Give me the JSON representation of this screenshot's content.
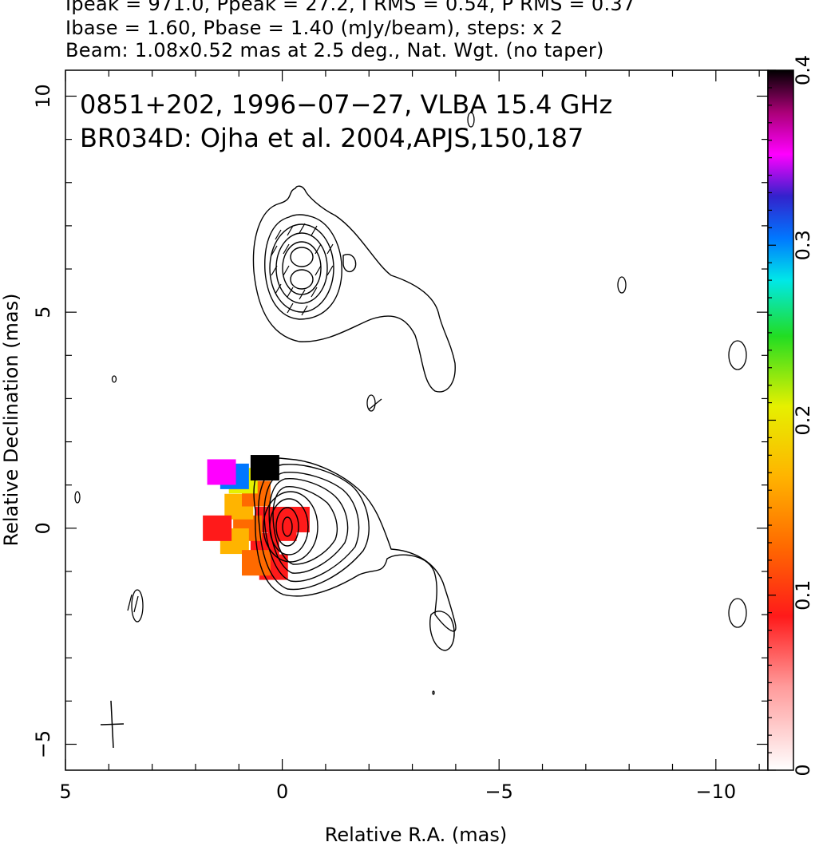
{
  "header": {
    "line1": "Ipeak = 971.0, Ppeak = 27.2, I RMS = 0.54, P RMS = 0.37",
    "line2": "Ibase = 1.60, Pbase = 1.40 (mJy/beam), steps: x 2",
    "line3": "Beam: 1.08x0.52 mas at 2.5 deg., Nat. Wgt. (no taper)"
  },
  "annotations": {
    "line1": "0851+202, 1996−07−27, VLBA 15.4 GHz",
    "line2": "BR034D: Ojha et al. 2004,APJS,150,187"
  },
  "chart_data": {
    "type": "heatmap",
    "description_source": "VLBA contour map with fractional polarization color overlay",
    "xlabel": "Relative R.A. (mas)",
    "ylabel": "Relative Declination (mas)",
    "xlim": [
      5,
      -11.2
    ],
    "ylim": [
      -5.6,
      10.6
    ],
    "x_ticks": [
      "5",
      "0",
      "−5",
      "−10"
    ],
    "x_tick_values": [
      5,
      0,
      -5,
      -10
    ],
    "y_ticks": [
      "−5",
      "0",
      "5",
      "10"
    ],
    "y_tick_values": [
      -5,
      0,
      5,
      10
    ],
    "colorbar": {
      "range": [
        0,
        0.4
      ],
      "tick_labels": [
        "0",
        "0.1",
        "0.2",
        "0.3",
        "0.4"
      ],
      "tick_values": [
        0,
        0.1,
        0.2,
        0.3,
        0.4
      ]
    },
    "core": {
      "x": 0,
      "y": 0
    },
    "jet_component": {
      "x": 0.3,
      "y": 6.2
    },
    "contour_levels_base_mJy": 1.6,
    "contour_step_factor": 2,
    "beam": {
      "major_mas": 1.08,
      "minor_mas": 0.52,
      "pa_deg": 2.5
    },
    "polarization_pixels": [
      {
        "x": 0.0,
        "y": 0.0,
        "frac": 0.06
      },
      {
        "x": 0.3,
        "y": 0.2,
        "frac": 0.07
      },
      {
        "x": -0.3,
        "y": 0.2,
        "frac": 0.06
      },
      {
        "x": 0.4,
        "y": -0.4,
        "frac": 0.08
      },
      {
        "x": 0.8,
        "y": 0.0,
        "frac": 0.12
      },
      {
        "x": 1.0,
        "y": 0.5,
        "frac": 0.14
      },
      {
        "x": 1.1,
        "y": -0.3,
        "frac": 0.13
      },
      {
        "x": 0.6,
        "y": 0.8,
        "frac": 0.11
      },
      {
        "x": 0.9,
        "y": 1.1,
        "frac": 0.2
      },
      {
        "x": 1.1,
        "y": 1.2,
        "frac": 0.28
      },
      {
        "x": 1.4,
        "y": 1.3,
        "frac": 0.35
      },
      {
        "x": 0.4,
        "y": 1.4,
        "frac": 0.38
      },
      {
        "x": 1.5,
        "y": 0.0,
        "frac": 0.05
      },
      {
        "x": 0.2,
        "y": -0.9,
        "frac": 0.06
      },
      {
        "x": 0.6,
        "y": -0.8,
        "frac": 0.1
      }
    ]
  }
}
